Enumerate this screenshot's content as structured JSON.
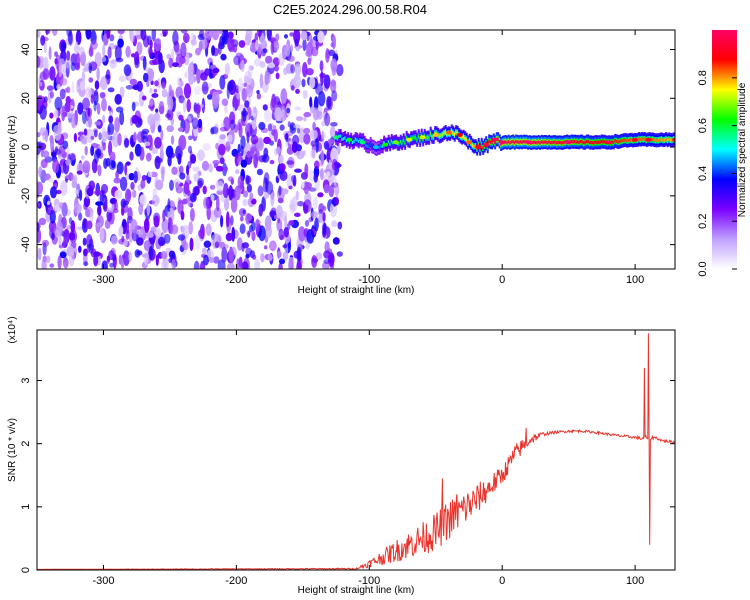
{
  "title": "C2E5.2024.296.00.58.R04",
  "chart_data": [
    {
      "type": "heatmap",
      "xlabel": "Height of straight line (km)",
      "ylabel": "Frequency (Hz)",
      "xlim": [
        -350,
        130
      ],
      "ylim": [
        -50,
        48
      ],
      "xticks": [
        -300,
        -200,
        -100,
        0,
        100
      ],
      "yticks": [
        -40,
        -20,
        0,
        20,
        40
      ],
      "xtick_labels": [
        "-300",
        "-200",
        "-100",
        "0",
        "100"
      ],
      "ytick_labels": [
        "-40",
        "-20",
        "0",
        "20",
        "40"
      ],
      "noise_region": {
        "x": [
          -350,
          -122
        ],
        "amplitude": [
          0.15,
          0.3
        ]
      },
      "ridge": {
        "x": [
          -125,
          -115,
          -105,
          -95,
          -88,
          -80,
          -70,
          -60,
          -50,
          -40,
          -32,
          -25,
          -18,
          -12,
          -6,
          0,
          20,
          50,
          80,
          100,
          110,
          130
        ],
        "y": [
          4,
          3,
          2,
          0,
          1,
          2,
          3,
          4,
          5,
          6,
          5,
          2,
          0,
          1,
          3,
          2,
          2,
          2,
          2,
          3,
          3,
          3
        ],
        "amplitude": [
          0.45,
          0.5,
          0.45,
          0.35,
          0.5,
          0.55,
          0.6,
          0.6,
          0.65,
          0.7,
          0.75,
          0.7,
          0.8,
          0.85,
          0.9,
          0.95,
          0.95,
          0.9,
          0.85,
          0.8,
          0.8,
          0.75
        ]
      },
      "colorbar": {
        "label": "Normalized spectral amplitude",
        "range": [
          0,
          1
        ],
        "ticks": [
          0.0,
          0.2,
          0.4,
          0.6,
          0.8
        ],
        "tick_labels": [
          "0.0",
          "0.2",
          "0.4",
          "0.6",
          "0.8"
        ],
        "colors": [
          "#ffffff",
          "#c0a0ff",
          "#7a00ff",
          "#0000ff",
          "#00ffff",
          "#00ff00",
          "#ffff00",
          "#ff0000",
          "#ff0066"
        ]
      }
    },
    {
      "type": "line",
      "xlabel": "Height of straight line (km)",
      "ylabel": "SNR (10 * v/v)",
      "scale_label": "(x10⁴)",
      "xlim": [
        -350,
        130
      ],
      "ylim": [
        0,
        3.8
      ],
      "xticks": [
        -300,
        -200,
        -100,
        0,
        100
      ],
      "yticks": [
        0,
        1,
        2,
        3
      ],
      "xtick_labels": [
        "-300",
        "-200",
        "-100",
        "0",
        "100"
      ],
      "ytick_labels": [
        "0",
        "1",
        "2",
        "3"
      ],
      "series": [
        {
          "color": "#e8342c",
          "x": [
            -350,
            -110,
            -100,
            -90,
            -80,
            -70,
            -60,
            -50,
            -40,
            -30,
            -20,
            -10,
            0,
            10,
            20,
            30,
            40,
            50,
            60,
            70,
            80,
            90,
            100,
            105,
            108,
            110,
            115,
            120,
            130
          ],
          "y": [
            0.01,
            0.02,
            0.1,
            0.2,
            0.3,
            0.4,
            0.5,
            0.6,
            0.8,
            0.95,
            1.1,
            1.3,
            1.5,
            1.85,
            2.05,
            2.15,
            2.18,
            2.2,
            2.2,
            2.18,
            2.15,
            2.12,
            2.1,
            2.08,
            2.1,
            2.08,
            2.1,
            2.05,
            2.02
          ],
          "noise": [
            0,
            0.01,
            0.06,
            0.12,
            0.18,
            0.22,
            0.26,
            0.3,
            0.32,
            0.3,
            0.25,
            0.2,
            0.15,
            0.15,
            0.1,
            0.03,
            0.02,
            0.02,
            0.02,
            0.02,
            0.02,
            0.02,
            0.02,
            0.03,
            0.03,
            0.03,
            0.02,
            0.02,
            0.02
          ],
          "spikes": [
            {
              "x": -45,
              "y": 1.45
            },
            {
              "x": -34,
              "y": 1.2
            },
            {
              "x": 18,
              "y": 2.25
            },
            {
              "x": 107,
              "y": 3.2
            },
            {
              "x": 110,
              "y": 3.75
            },
            {
              "x": 111,
              "y": 0.4
            }
          ]
        }
      ]
    }
  ]
}
